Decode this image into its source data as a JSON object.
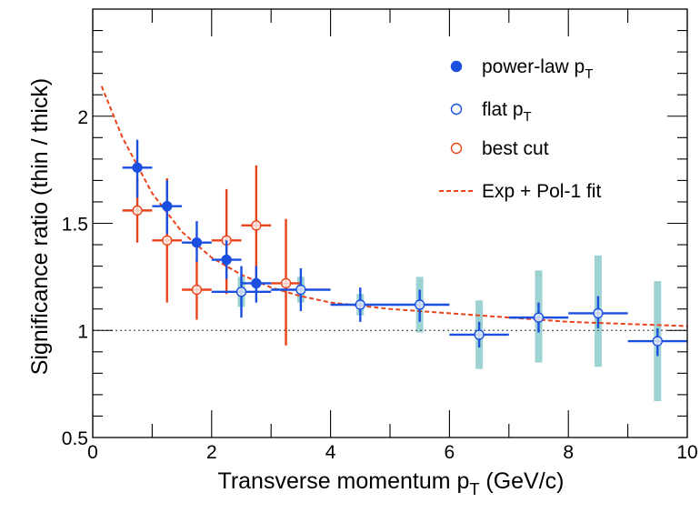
{
  "chart_data": {
    "type": "scatter",
    "title": "",
    "xlabel": "Transverse momentum p_T (GeV/c)",
    "xlabel_parts": {
      "pre": "Transverse momentum p",
      "sub": "T",
      "post": " (GeV/c)"
    },
    "ylabel": "Significance ratio (thin / thick)",
    "xlim": [
      0,
      10
    ],
    "ylim": [
      0.5,
      2.5
    ],
    "xticks": [
      0,
      2,
      4,
      6,
      8,
      10
    ],
    "xtick_labels": [
      "0",
      "2",
      "4",
      "6",
      "8",
      "10"
    ],
    "yticks": [
      0.5,
      1,
      1.5,
      2
    ],
    "ytick_labels": [
      "0.5",
      "1",
      "1.5",
      "2"
    ],
    "grid": false,
    "legend_position": "top-right",
    "reference_line": {
      "y": 1.0,
      "style": "dotted",
      "color": "#555555"
    },
    "series": [
      {
        "name": "power-law p_T",
        "legend": {
          "pre": "power-law p",
          "sub": "T"
        },
        "marker": "filled-circle",
        "color": "#1a4fe0",
        "points": [
          {
            "x": 0.75,
            "y": 1.76,
            "xerr": 0.25,
            "ylo": 1.62,
            "yhi": 1.89
          },
          {
            "x": 1.25,
            "y": 1.58,
            "xerr": 0.25,
            "ylo": 1.45,
            "yhi": 1.7
          },
          {
            "x": 1.75,
            "y": 1.41,
            "xerr": 0.25,
            "ylo": 1.32,
            "yhi": 1.51
          },
          {
            "x": 2.25,
            "y": 1.33,
            "xerr": 0.25,
            "ylo": 1.24,
            "yhi": 1.42
          },
          {
            "x": 2.75,
            "y": 1.22,
            "xerr": 0.25,
            "ylo": 1.13,
            "yhi": 1.3
          }
        ]
      },
      {
        "name": "flat p_T",
        "legend": {
          "pre": "flat p",
          "sub": "T"
        },
        "marker": "open-circle",
        "color": "#1a4fe0",
        "syst_color": "#9ed3d3",
        "points": [
          {
            "x": 2.5,
            "y": 1.18,
            "xerr": 0.5,
            "ylo": 1.06,
            "yhi": 1.3,
            "slo": 1.11,
            "shi": 1.25
          },
          {
            "x": 3.5,
            "y": 1.19,
            "xerr": 0.5,
            "ylo": 1.09,
            "yhi": 1.29,
            "slo": 1.13,
            "shi": 1.25
          },
          {
            "x": 4.5,
            "y": 1.12,
            "xerr": 0.5,
            "ylo": 1.04,
            "yhi": 1.2,
            "slo": 1.07,
            "shi": 1.17
          },
          {
            "x": 5.5,
            "y": 1.12,
            "xerr": 0.5,
            "ylo": 1.04,
            "yhi": 1.19,
            "slo": 0.99,
            "shi": 1.25
          },
          {
            "x": 6.5,
            "y": 0.98,
            "xerr": 0.5,
            "ylo": 0.92,
            "yhi": 1.04,
            "slo": 0.82,
            "shi": 1.14
          },
          {
            "x": 7.5,
            "y": 1.06,
            "xerr": 0.5,
            "ylo": 0.99,
            "yhi": 1.13,
            "slo": 0.85,
            "shi": 1.28
          },
          {
            "x": 8.5,
            "y": 1.08,
            "xerr": 0.5,
            "ylo": 1.01,
            "yhi": 1.16,
            "slo": 0.83,
            "shi": 1.35
          },
          {
            "x": 9.5,
            "y": 0.95,
            "xerr": 0.5,
            "ylo": 0.88,
            "yhi": 1.01,
            "slo": 0.67,
            "shi": 1.23
          }
        ]
      },
      {
        "name": "best cut",
        "legend": {
          "pre": "best cut",
          "sub": ""
        },
        "marker": "open-circle",
        "color": "#e8441a",
        "points": [
          {
            "x": 0.75,
            "y": 1.56,
            "xerr": 0.25,
            "ylo": 1.41,
            "yhi": 1.71
          },
          {
            "x": 1.25,
            "y": 1.42,
            "xerr": 0.25,
            "ylo": 1.13,
            "yhi": 1.71
          },
          {
            "x": 1.75,
            "y": 1.19,
            "xerr": 0.25,
            "ylo": 1.05,
            "yhi": 1.33
          },
          {
            "x": 2.25,
            "y": 1.42,
            "xerr": 0.25,
            "ylo": 1.17,
            "yhi": 1.66
          },
          {
            "x": 2.75,
            "y": 1.49,
            "xerr": 0.25,
            "ylo": 1.21,
            "yhi": 1.77
          },
          {
            "x": 3.25,
            "y": 1.22,
            "xerr": 0.25,
            "ylo": 0.93,
            "yhi": 1.52
          }
        ]
      },
      {
        "name": "Exp + Pol-1 fit",
        "legend": {
          "pre": "Exp + Pol-1 fit",
          "sub": ""
        },
        "marker": "dashed-line",
        "color": "#e8441a",
        "x": [
          0.15,
          0.5,
          1.0,
          1.5,
          2.0,
          2.5,
          3.0,
          3.5,
          4.0,
          5.0,
          6.0,
          7.0,
          8.0,
          9.0,
          10.0
        ],
        "y": [
          2.14,
          1.9,
          1.64,
          1.46,
          1.34,
          1.26,
          1.2,
          1.16,
          1.13,
          1.1,
          1.08,
          1.06,
          1.04,
          1.03,
          1.02
        ]
      }
    ]
  }
}
